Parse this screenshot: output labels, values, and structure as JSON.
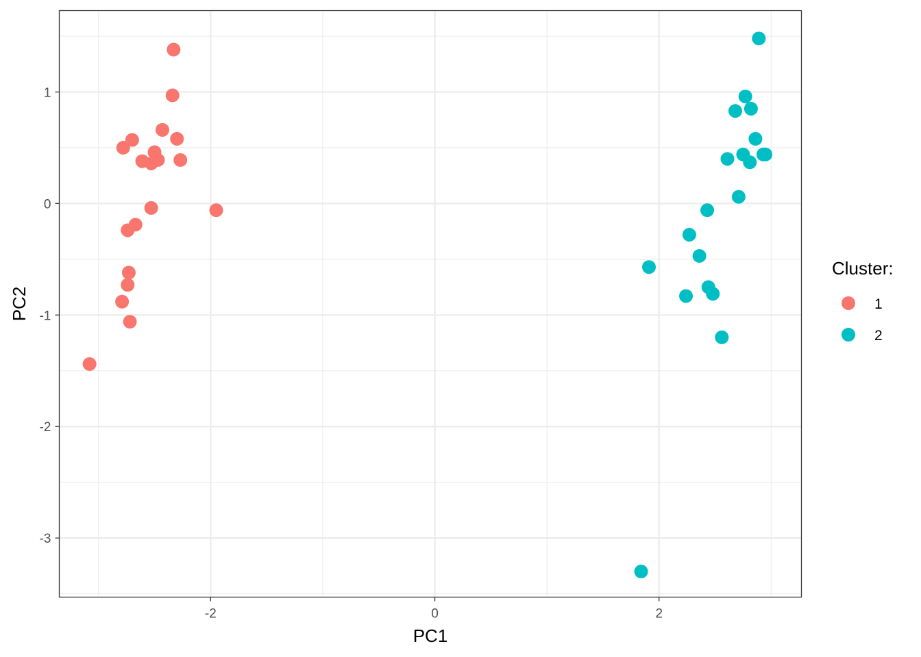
{
  "chart_data": {
    "type": "scatter",
    "xlabel": "PC1",
    "ylabel": "PC2",
    "xlim": [
      -3.35,
      3.27
    ],
    "ylim": [
      -3.53,
      1.73
    ],
    "x_ticks": [
      -2,
      0,
      2
    ],
    "x_tick_labels": [
      "-2",
      "0",
      "2"
    ],
    "y_ticks": [
      -3,
      -2,
      -1,
      0,
      1
    ],
    "y_tick_labels": [
      "-3",
      "-2",
      "-1",
      "0",
      "1"
    ],
    "x_minor_ticks": [
      -3,
      -1,
      1,
      3
    ],
    "y_minor_ticks": [
      -3.5,
      -2.5,
      -1.5,
      -0.5,
      0.5,
      1.5
    ],
    "grid": true,
    "legend": {
      "title": "Cluster:",
      "position": "right",
      "entries": [
        {
          "label": "1",
          "color": "#F8766D"
        },
        {
          "label": "2",
          "color": "#00BFC4"
        }
      ]
    },
    "series": [
      {
        "name": "1",
        "color": "#F8766D",
        "points": [
          [
            -2.33,
            1.38
          ],
          [
            -2.34,
            0.97
          ],
          [
            -2.43,
            0.66
          ],
          [
            -2.3,
            0.58
          ],
          [
            -2.7,
            0.57
          ],
          [
            -2.78,
            0.5
          ],
          [
            -2.5,
            0.46
          ],
          [
            -2.27,
            0.39
          ],
          [
            -2.47,
            0.39
          ],
          [
            -2.61,
            0.38
          ],
          [
            -2.53,
            0.36
          ],
          [
            -1.95,
            -0.06
          ],
          [
            -2.53,
            -0.04
          ],
          [
            -2.67,
            -0.19
          ],
          [
            -2.74,
            -0.24
          ],
          [
            -2.73,
            -0.62
          ],
          [
            -2.74,
            -0.73
          ],
          [
            -2.79,
            -0.88
          ],
          [
            -2.72,
            -1.06
          ],
          [
            -3.08,
            -1.44
          ]
        ]
      },
      {
        "name": "2",
        "color": "#00BFC4",
        "points": [
          [
            2.89,
            1.48
          ],
          [
            2.77,
            0.96
          ],
          [
            2.82,
            0.85
          ],
          [
            2.68,
            0.83
          ],
          [
            2.86,
            0.58
          ],
          [
            2.75,
            0.44
          ],
          [
            2.95,
            0.44
          ],
          [
            2.93,
            0.44
          ],
          [
            2.61,
            0.4
          ],
          [
            2.81,
            0.37
          ],
          [
            2.71,
            0.06
          ],
          [
            2.43,
            -0.06
          ],
          [
            2.27,
            -0.28
          ],
          [
            2.36,
            -0.47
          ],
          [
            1.91,
            -0.57
          ],
          [
            2.44,
            -0.75
          ],
          [
            2.48,
            -0.81
          ],
          [
            2.24,
            -0.83
          ],
          [
            2.56,
            -1.2
          ],
          [
            1.84,
            -3.3
          ]
        ]
      }
    ]
  }
}
